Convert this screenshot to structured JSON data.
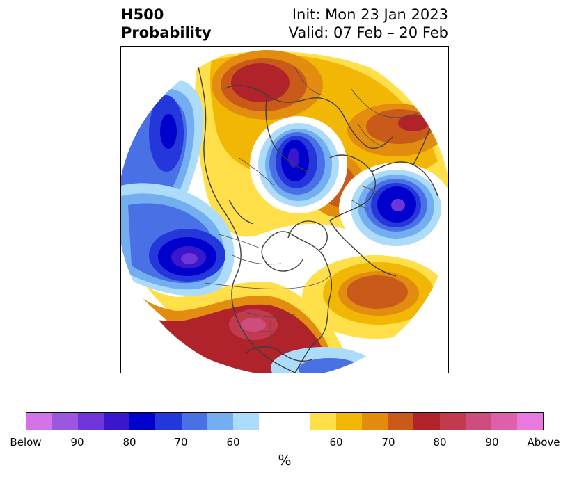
{
  "title": {
    "left_line1": "H500",
    "left_line2": "Probability",
    "right_line1": "Init: Mon 23 Jan 2023",
    "right_line2": "Valid: 07 Feb – 20 Feb"
  },
  "colorbar": {
    "unit": "%",
    "tick_labels": [
      "Below",
      "90",
      "80",
      "70",
      "60",
      "60",
      "70",
      "80",
      "90",
      "Above"
    ],
    "below_colors": [
      "#d473e8",
      "#9c57df",
      "#6e36d8",
      "#3a17cc",
      "#0000cc",
      "#2337db",
      "#4a70e6",
      "#72aef0",
      "#acdcfa"
    ],
    "neutral_color": "#ffffff",
    "above_colors": [
      "#ffe04a",
      "#f2b705",
      "#e38d10",
      "#c95a19",
      "#b0232a",
      "#c23a4e",
      "#cd4e7e",
      "#dd60a8",
      "#e879de"
    ]
  },
  "map": {
    "projection": "north-polar-stereographic",
    "anomalies": [
      {
        "region": "North Pacific",
        "sign": "below",
        "peak": 80
      },
      {
        "region": "Eastern Pacific (west of Mexico)",
        "sign": "below",
        "peak": 90
      },
      {
        "region": "Arctic / Kara Sea",
        "sign": "below",
        "peak": 90
      },
      {
        "region": "Greenland / Iceland",
        "sign": "below",
        "peak": 90
      },
      {
        "region": "Southeastern United States / Mexico",
        "sign": "above",
        "peak": 90
      },
      {
        "region": "Siberia",
        "sign": "above",
        "peak": 80
      },
      {
        "region": "North Atlantic / Europe",
        "sign": "above",
        "peak": 70
      },
      {
        "region": "Western Russia",
        "sign": "above",
        "peak": 70
      }
    ]
  }
}
